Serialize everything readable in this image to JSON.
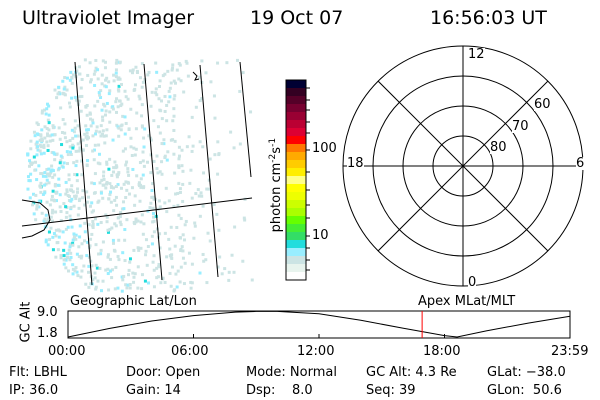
{
  "header": {
    "instrument": "Ultraviolet Imager",
    "date": "19 Oct 07",
    "time": "16:56:03 UT"
  },
  "colorbar": {
    "label": "photon cm",
    "label_sup1": "-2",
    "label_s": "s",
    "label_sup2": "-1",
    "ticks": [
      "100",
      "10"
    ],
    "colors": [
      "#000033",
      "#330022",
      "#550028",
      "#770030",
      "#990033",
      "#bb0033",
      "#dd0033",
      "#ff0000",
      "#ff7700",
      "#ffaa00",
      "#ffcc00",
      "#ffee00",
      "#ffff88",
      "#ffff00",
      "#eeff00",
      "#ccff00",
      "#aaff00",
      "#66ff00",
      "#44ee33",
      "#33dd66",
      "#22dddd",
      "#99eeff",
      "#cce4e4",
      "#e8f4ee",
      "#ffffff"
    ]
  },
  "polar_plot": {
    "mlt_labels": {
      "top": "12",
      "bottom": "0",
      "left": "18",
      "right": "6"
    },
    "mlat_labels": [
      "60",
      "70",
      "80"
    ]
  },
  "chart_data": {
    "type": "line",
    "ylabel": "GC Alt",
    "yticks": [
      "9.0",
      "1.8"
    ],
    "ylim": [
      1.8,
      9.0
    ],
    "xticks": [
      "00:00",
      "06:00",
      "12:00",
      "18:00",
      "23:59"
    ],
    "xlim_hours": [
      0,
      24
    ],
    "left_label": "Geographic Lat/Lon",
    "right_label": "Apex MLat/MLT",
    "series": [
      {
        "x": [
          0,
          2,
          4,
          6,
          8,
          9,
          10,
          12,
          14,
          16,
          18,
          18.6,
          20,
          22,
          24
        ],
        "y": [
          1.8,
          4.2,
          6.3,
          7.8,
          8.8,
          9.0,
          9.0,
          8.3,
          6.5,
          4.3,
          2.2,
          1.8,
          3.5,
          5.7,
          7.6
        ]
      }
    ],
    "current_time_hours": 16.93,
    "current_marker_color": "#ff0000"
  },
  "info": {
    "row1": [
      "Flt: LBHL",
      "Door: Open",
      "Mode: Normal",
      "GC Alt: 4.3 Re",
      "GLat: −38.0"
    ],
    "row2": [
      "IP: 36.0",
      "Gain: 14",
      "Dsp:    8.0",
      "Seq: 39",
      "GLon:  50.6"
    ]
  }
}
